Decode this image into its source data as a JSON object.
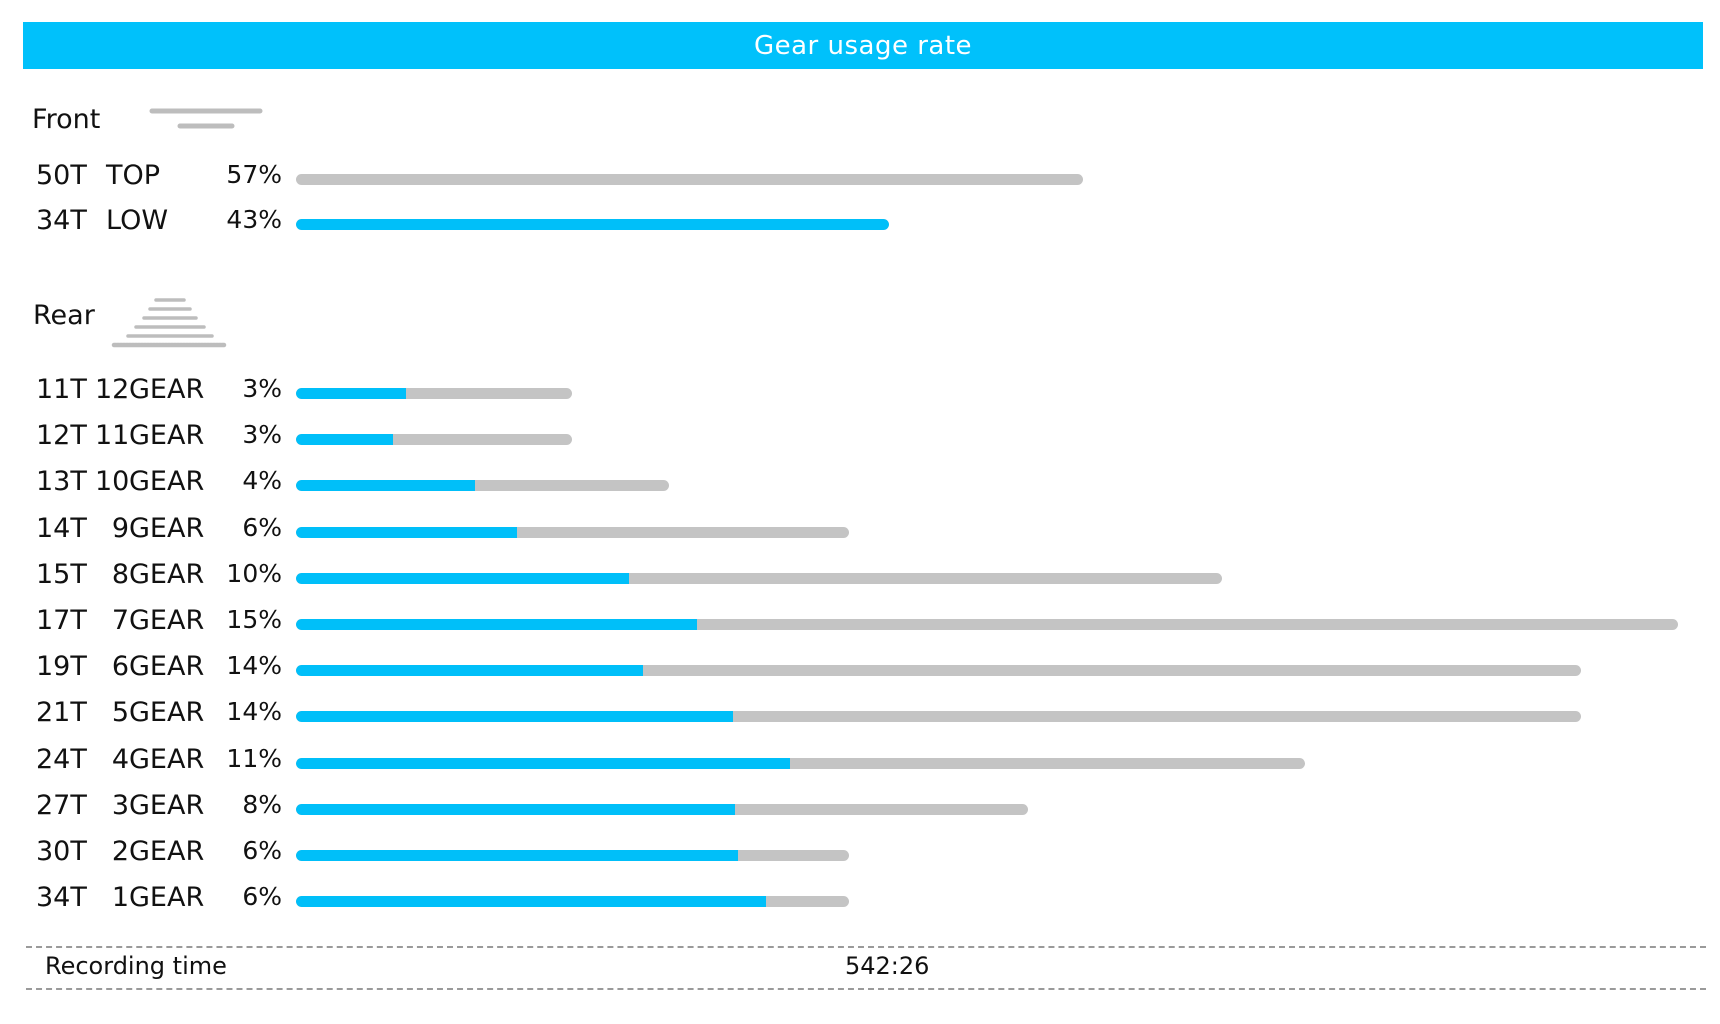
{
  "title": "Gear usage rate",
  "colors": {
    "accent": "#00c1fb",
    "track": "#c4c4c4"
  },
  "front": {
    "label": "Front",
    "icon": "front-chainring-icon",
    "rows": [
      {
        "teeth": "50T",
        "gear": "TOP",
        "percent": "57%",
        "usage_fraction": 0.57,
        "fill_fraction": 0.0
      },
      {
        "teeth": "34T",
        "gear": "LOW",
        "percent": "43%",
        "usage_fraction": 0.43,
        "fill_fraction": 1.0
      }
    ]
  },
  "rear": {
    "label": "Rear",
    "icon": "rear-cassette-icon",
    "rows": [
      {
        "teeth": "11T",
        "gear_num": "12",
        "gear_word": "GEAR",
        "percent": "3%",
        "usage_fraction": 0.2,
        "fill_fraction": 0.4
      },
      {
        "teeth": "12T",
        "gear_num": "11",
        "gear_word": "GEAR",
        "percent": "3%",
        "usage_fraction": 0.2,
        "fill_fraction": 0.35
      },
      {
        "teeth": "13T",
        "gear_num": "10",
        "gear_word": "GEAR",
        "percent": "4%",
        "usage_fraction": 0.27,
        "fill_fraction": 0.48
      },
      {
        "teeth": "14T",
        "gear_num": "9",
        "gear_word": "GEAR",
        "percent": "6%",
        "usage_fraction": 0.4,
        "fill_fraction": 0.4
      },
      {
        "teeth": "15T",
        "gear_num": "8",
        "gear_word": "GEAR",
        "percent": "10%",
        "usage_fraction": 0.67,
        "fill_fraction": 0.36
      },
      {
        "teeth": "17T",
        "gear_num": "7",
        "gear_word": "GEAR",
        "percent": "15%",
        "usage_fraction": 1.0,
        "fill_fraction": 0.29
      },
      {
        "teeth": "19T",
        "gear_num": "6",
        "gear_word": "GEAR",
        "percent": "14%",
        "usage_fraction": 0.93,
        "fill_fraction": 0.27
      },
      {
        "teeth": "21T",
        "gear_num": "5",
        "gear_word": "GEAR",
        "percent": "14%",
        "usage_fraction": 0.93,
        "fill_fraction": 0.34
      },
      {
        "teeth": "24T",
        "gear_num": "4",
        "gear_word": "GEAR",
        "percent": "11%",
        "usage_fraction": 0.73,
        "fill_fraction": 0.49
      },
      {
        "teeth": "27T",
        "gear_num": "3",
        "gear_word": "GEAR",
        "percent": "8%",
        "usage_fraction": 0.53,
        "fill_fraction": 0.6
      },
      {
        "teeth": "30T",
        "gear_num": "2",
        "gear_word": "GEAR",
        "percent": "6%",
        "usage_fraction": 0.4,
        "fill_fraction": 0.8
      },
      {
        "teeth": "34T",
        "gear_num": "1",
        "gear_word": "GEAR",
        "percent": "6%",
        "usage_fraction": 0.4,
        "fill_fraction": 0.85
      }
    ]
  },
  "footer": {
    "label": "Recording time",
    "value": "542:26"
  },
  "chart_data": {
    "type": "bar",
    "title": "Gear usage rate",
    "series": [
      {
        "name": "Front",
        "categories": [
          "50T TOP",
          "34T LOW"
        ],
        "values": [
          57,
          43
        ]
      },
      {
        "name": "Rear",
        "categories": [
          "11T 12GEAR",
          "12T 11GEAR",
          "13T 10GEAR",
          "14T 9GEAR",
          "15T 8GEAR",
          "17T 7GEAR",
          "19T 6GEAR",
          "21T 5GEAR",
          "24T 4GEAR",
          "27T 3GEAR",
          "30T 2GEAR",
          "34T 1GEAR"
        ],
        "values": [
          3,
          3,
          4,
          6,
          10,
          15,
          14,
          14,
          11,
          8,
          6,
          6
        ]
      }
    ],
    "orientation": "horizontal",
    "grid": false
  }
}
